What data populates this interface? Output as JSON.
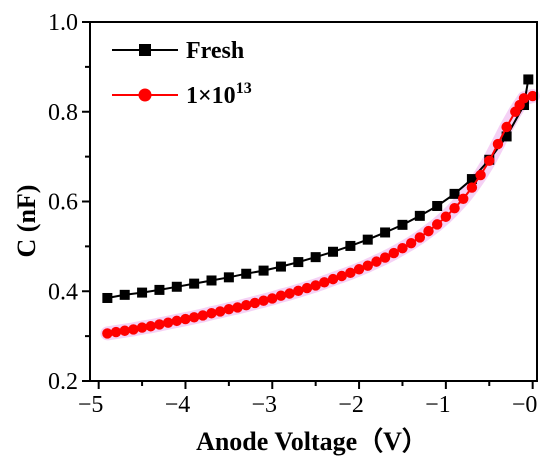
{
  "chart_data": {
    "type": "line",
    "title": "",
    "xlabel": "Anode Voltage（V）",
    "ylabel": "C (nF)",
    "xlim": [
      -5.1,
      0.05
    ],
    "ylim": [
      0.2,
      1.0
    ],
    "x_ticks": [
      -5,
      -4,
      -3,
      -2,
      -1,
      0
    ],
    "x_tick_labels": [
      "−5",
      "−4",
      "−3",
      "−2",
      "−1",
      "−0"
    ],
    "y_ticks": [
      0.2,
      0.4,
      0.6,
      0.8,
      1.0
    ],
    "y_tick_labels": [
      "0.2",
      "0.4",
      "0.6",
      "0.8",
      "1.0"
    ],
    "legend": {
      "position": "top-left"
    },
    "series": [
      {
        "name": "Fresh",
        "marker": "square",
        "color": "#000000",
        "x": [
          -4.9,
          -4.7,
          -4.5,
          -4.3,
          -4.1,
          -3.9,
          -3.7,
          -3.5,
          -3.3,
          -3.1,
          -2.9,
          -2.7,
          -2.5,
          -2.3,
          -2.1,
          -1.9,
          -1.7,
          -1.5,
          -1.3,
          -1.1,
          -0.9,
          -0.7,
          -0.5,
          -0.3,
          -0.1,
          -0.05
        ],
        "y": [
          0.385,
          0.392,
          0.397,
          0.403,
          0.41,
          0.417,
          0.424,
          0.431,
          0.439,
          0.446,
          0.455,
          0.465,
          0.476,
          0.488,
          0.501,
          0.515,
          0.531,
          0.548,
          0.568,
          0.59,
          0.617,
          0.65,
          0.693,
          0.745,
          0.815,
          0.872
        ]
      },
      {
        "name": "1×10",
        "name_sup": "13",
        "marker": "circle",
        "color": "#ff0000",
        "x": [
          -4.9,
          -4.8,
          -4.7,
          -4.6,
          -4.5,
          -4.4,
          -4.3,
          -4.2,
          -4.1,
          -4.0,
          -3.9,
          -3.8,
          -3.7,
          -3.6,
          -3.5,
          -3.4,
          -3.3,
          -3.2,
          -3.1,
          -3.0,
          -2.9,
          -2.8,
          -2.7,
          -2.6,
          -2.5,
          -2.4,
          -2.3,
          -2.2,
          -2.1,
          -2.0,
          -1.9,
          -1.8,
          -1.7,
          -1.6,
          -1.5,
          -1.4,
          -1.3,
          -1.2,
          -1.1,
          -1.0,
          -0.9,
          -0.8,
          -0.7,
          -0.6,
          -0.5,
          -0.4,
          -0.3,
          -0.2,
          -0.15,
          -0.1,
          0.0
        ],
        "y": [
          0.306,
          0.309,
          0.312,
          0.315,
          0.319,
          0.322,
          0.326,
          0.33,
          0.334,
          0.338,
          0.342,
          0.346,
          0.351,
          0.355,
          0.36,
          0.364,
          0.369,
          0.374,
          0.379,
          0.384,
          0.39,
          0.395,
          0.401,
          0.407,
          0.413,
          0.42,
          0.427,
          0.434,
          0.441,
          0.449,
          0.457,
          0.466,
          0.475,
          0.485,
          0.496,
          0.507,
          0.52,
          0.534,
          0.549,
          0.566,
          0.585,
          0.606,
          0.631,
          0.659,
          0.691,
          0.728,
          0.766,
          0.8,
          0.815,
          0.83,
          0.835
        ]
      }
    ]
  }
}
